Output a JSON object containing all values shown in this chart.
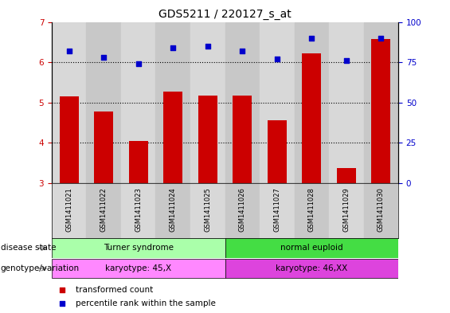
{
  "title": "GDS5211 / 220127_s_at",
  "samples": [
    "GSM1411021",
    "GSM1411022",
    "GSM1411023",
    "GSM1411024",
    "GSM1411025",
    "GSM1411026",
    "GSM1411027",
    "GSM1411028",
    "GSM1411029",
    "GSM1411030"
  ],
  "transformed_count": [
    5.15,
    4.78,
    4.05,
    5.28,
    5.18,
    5.18,
    4.55,
    6.22,
    3.38,
    6.58
  ],
  "percentile_rank": [
    82,
    78,
    74,
    84,
    85,
    82,
    77,
    90,
    76,
    90
  ],
  "ylim_left": [
    3,
    7
  ],
  "ylim_right": [
    0,
    100
  ],
  "yticks_left": [
    3,
    4,
    5,
    6,
    7
  ],
  "yticks_right": [
    0,
    25,
    50,
    75,
    100
  ],
  "bar_color": "#cc0000",
  "dot_color": "#0000cc",
  "disease_state_groups": [
    {
      "label": "Turner syndrome",
      "start": 0,
      "end": 5,
      "color": "#aaffaa"
    },
    {
      "label": "normal euploid",
      "start": 5,
      "end": 10,
      "color": "#44dd44"
    }
  ],
  "genotype_groups": [
    {
      "label": "karyotype: 45,X",
      "start": 0,
      "end": 5,
      "color": "#ff88ff"
    },
    {
      "label": "karyotype: 46,XX",
      "start": 5,
      "end": 10,
      "color": "#dd44dd"
    }
  ],
  "row_labels": [
    "disease state",
    "genotype/variation"
  ],
  "legend_items": [
    {
      "color": "#cc0000",
      "label": "transformed count"
    },
    {
      "color": "#0000cc",
      "label": "percentile rank within the sample"
    }
  ],
  "bg_color_odd": "#d8d8d8",
  "bg_color_even": "#c8c8c8"
}
